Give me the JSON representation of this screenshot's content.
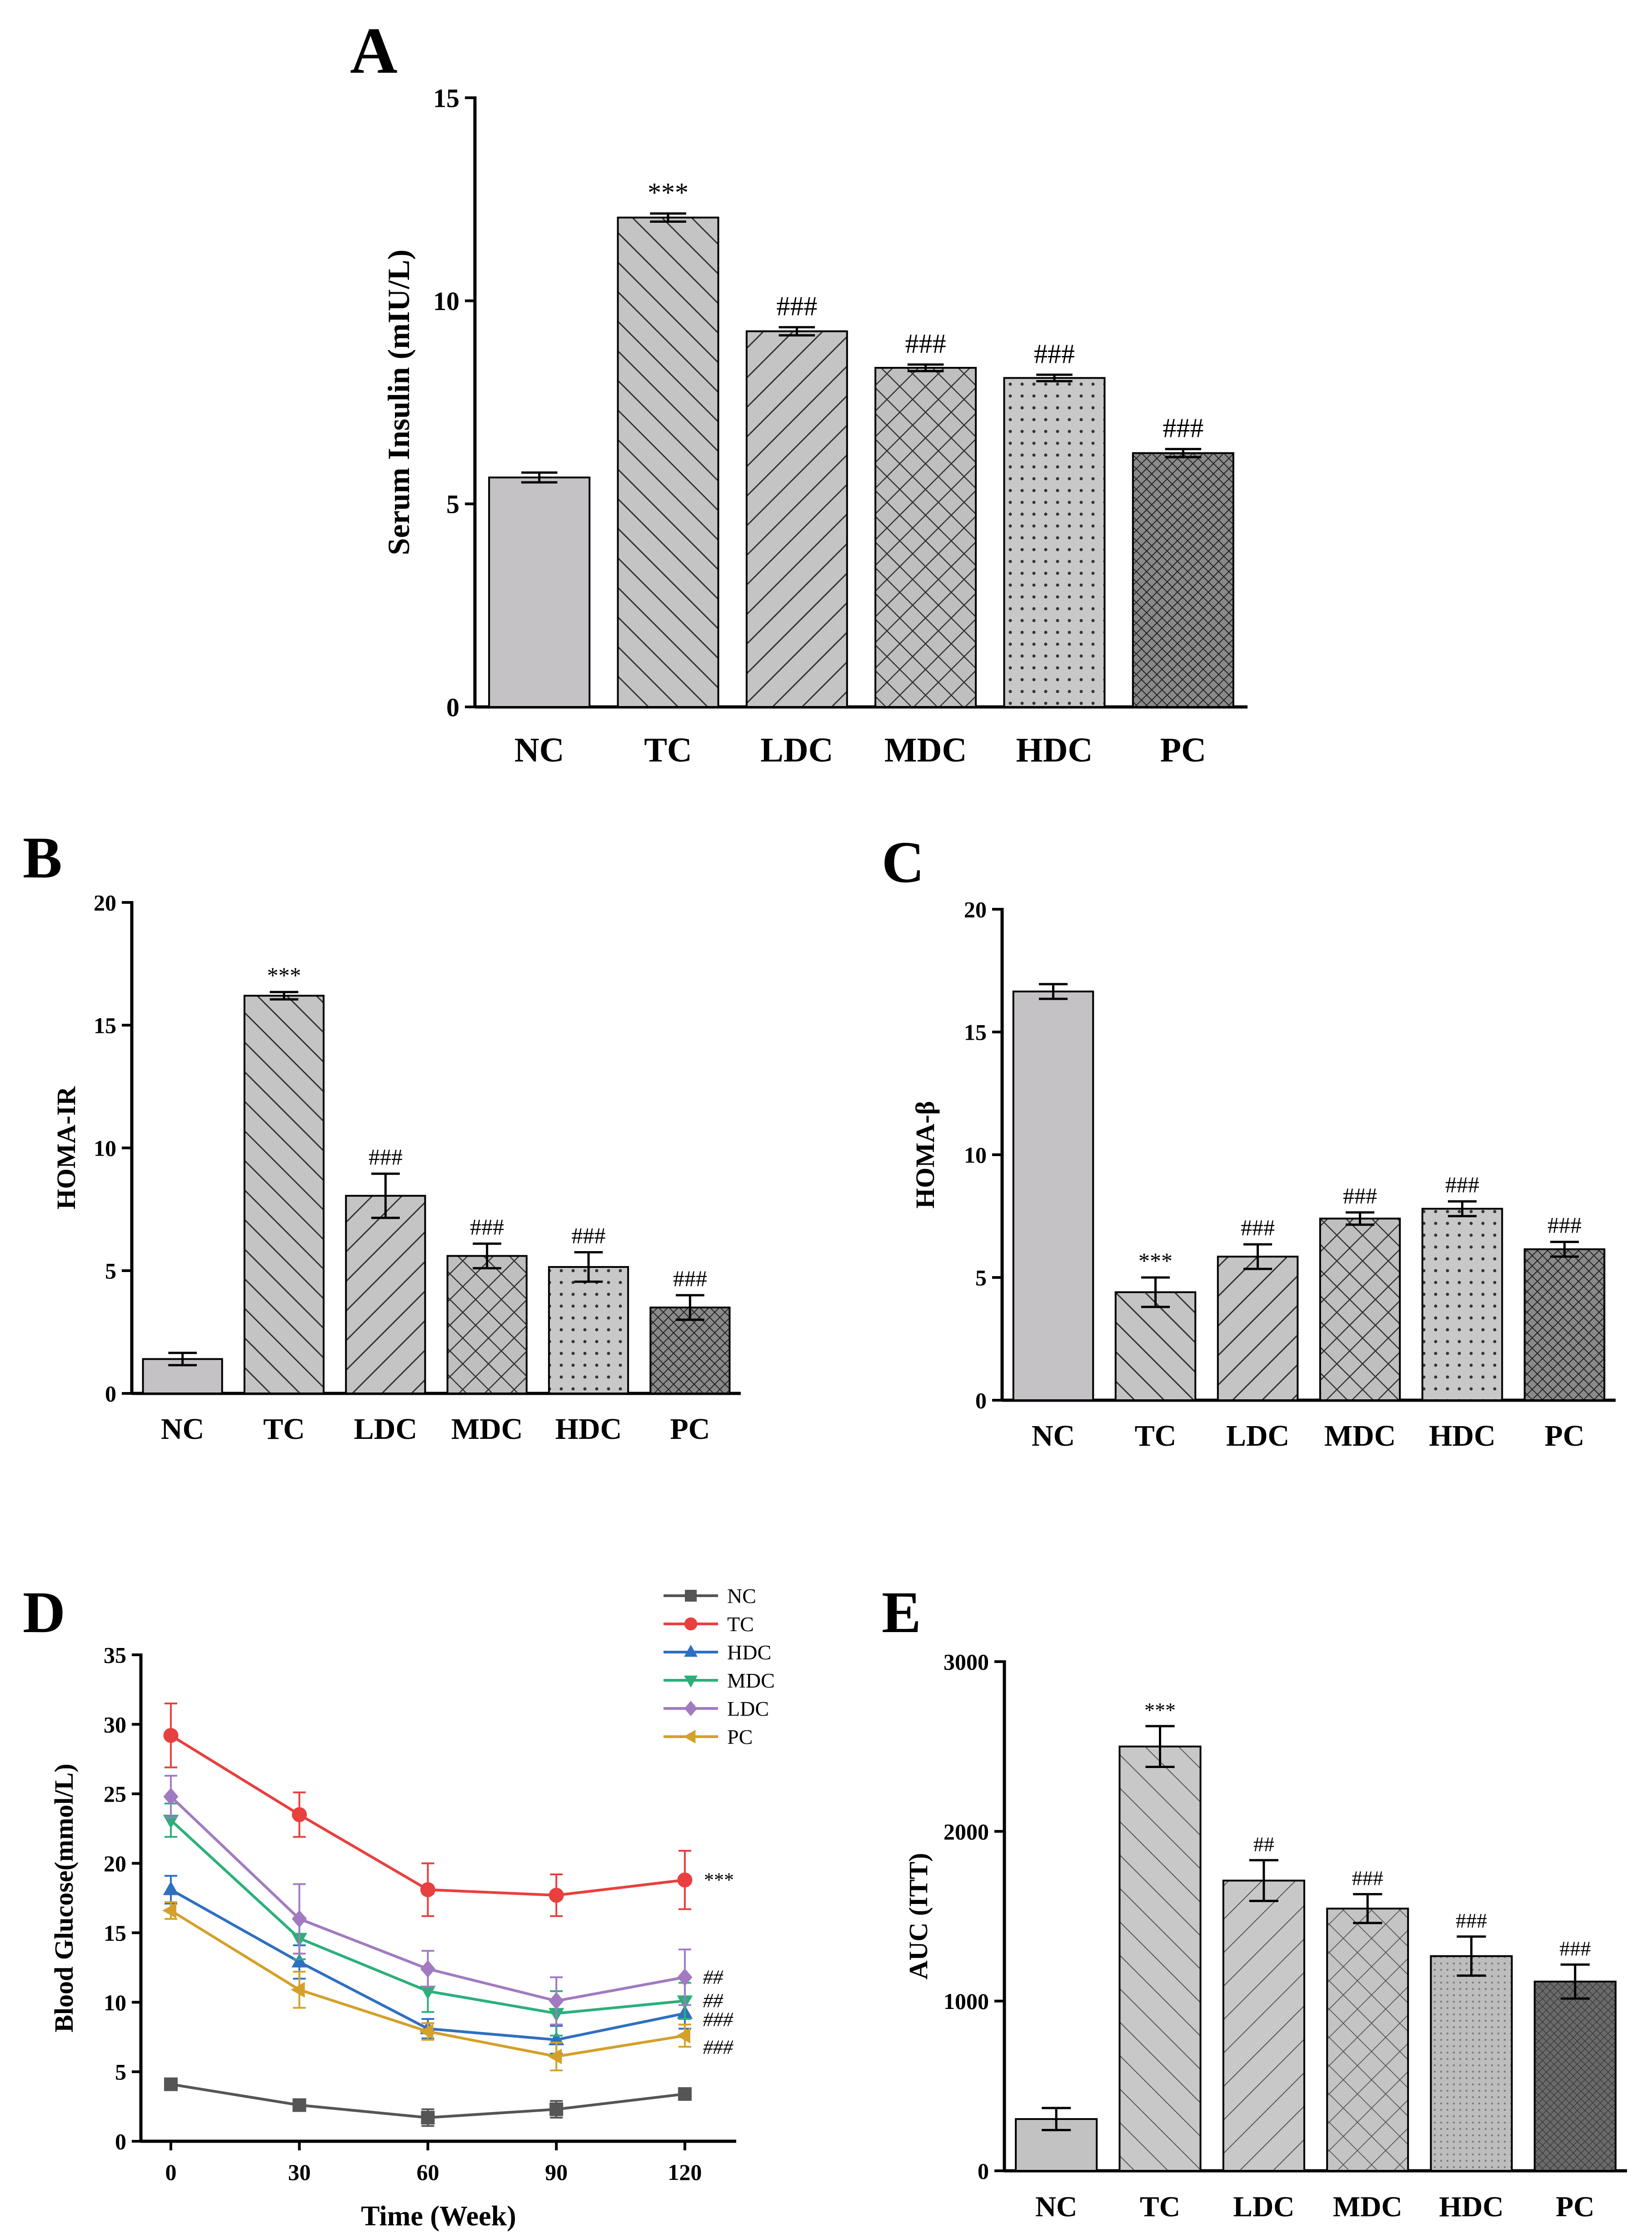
{
  "colors": {
    "NC": "#555555",
    "TC": "#e8403f",
    "HDC": "#2f6fc0",
    "MDC": "#2bb07a",
    "LDC": "#a27ac2",
    "PC": "#d4a02a"
  },
  "chart_data": [
    {
      "panel": "A",
      "type": "bar",
      "ylabel": "Serum Insulin (mIU/L)",
      "categories": [
        "NC",
        "TC",
        "LDC",
        "MDC",
        "HDC",
        "PC"
      ],
      "values": [
        5.65,
        12.05,
        9.25,
        8.35,
        8.1,
        6.25
      ],
      "errors": [
        0.12,
        0.1,
        0.1,
        0.08,
        0.08,
        0.1
      ],
      "significance": [
        "",
        "***",
        "###",
        "###",
        "###",
        "###"
      ],
      "patterns": [
        "solid",
        "diag-right",
        "diag-left",
        "cross",
        "dots",
        "dense"
      ],
      "ylim": [
        0,
        15
      ],
      "yticks": [
        0,
        5,
        10,
        15
      ]
    },
    {
      "panel": "B",
      "type": "bar",
      "ylabel": "HOMA-IR",
      "categories": [
        "NC",
        "TC",
        "LDC",
        "MDC",
        "HDC",
        "PC"
      ],
      "values": [
        1.4,
        16.2,
        8.05,
        5.6,
        5.15,
        3.5
      ],
      "errors": [
        0.25,
        0.15,
        0.9,
        0.5,
        0.6,
        0.5
      ],
      "significance": [
        "",
        "***",
        "###",
        "###",
        "###",
        "###"
      ],
      "patterns": [
        "solid",
        "diag-right",
        "diag-left",
        "cross",
        "dots",
        "dense"
      ],
      "ylim": [
        0,
        20
      ],
      "yticks": [
        0,
        5,
        10,
        15,
        20
      ]
    },
    {
      "panel": "C",
      "type": "bar",
      "ylabel": "HOMA-β",
      "categories": [
        "NC",
        "TC",
        "LDC",
        "MDC",
        "HDC",
        "PC"
      ],
      "values": [
        16.65,
        4.4,
        5.85,
        7.4,
        7.8,
        6.15
      ],
      "errors": [
        0.3,
        0.6,
        0.5,
        0.25,
        0.3,
        0.3
      ],
      "significance": [
        "",
        "***",
        "###",
        "###",
        "###",
        "###"
      ],
      "patterns": [
        "solid",
        "diag-right",
        "diag-left",
        "cross",
        "dots",
        "dense"
      ],
      "ylim": [
        0,
        20
      ],
      "yticks": [
        0,
        5,
        10,
        15,
        20
      ]
    },
    {
      "panel": "D",
      "type": "line",
      "xlabel": "Time (Week)",
      "ylabel": "Blood Glucose(mmol/L)",
      "x": [
        0,
        30,
        60,
        90,
        120
      ],
      "xlim": [
        -7,
        132
      ],
      "ylim": [
        0,
        35
      ],
      "xticks": [
        0,
        30,
        60,
        90,
        120
      ],
      "yticks": [
        0,
        5,
        10,
        15,
        20,
        25,
        30,
        35
      ],
      "legend_position": "top-right",
      "series": [
        {
          "name": "NC",
          "marker": "square",
          "values": [
            4.1,
            2.6,
            1.7,
            2.3,
            3.4
          ],
          "errors": [
            0.3,
            0.4,
            0.6,
            0.6,
            0.3
          ],
          "end_label": ""
        },
        {
          "name": "TC",
          "marker": "circle",
          "values": [
            29.2,
            23.5,
            18.1,
            17.7,
            18.8
          ],
          "errors": [
            2.3,
            1.6,
            1.9,
            1.5,
            2.1
          ],
          "end_label": "***"
        },
        {
          "name": "HDC",
          "marker": "triangle-up",
          "values": [
            18.1,
            12.9,
            8.1,
            7.3,
            9.2
          ],
          "errors": [
            1.0,
            1.2,
            0.7,
            1.0,
            1.1
          ],
          "end_label": "###"
        },
        {
          "name": "MDC",
          "marker": "triangle-down",
          "values": [
            23.1,
            14.6,
            10.8,
            9.2,
            10.1
          ],
          "errors": [
            1.2,
            1.5,
            1.5,
            1.6,
            1.3
          ],
          "end_label": "##"
        },
        {
          "name": "LDC",
          "marker": "diamond",
          "values": [
            24.8,
            16.0,
            12.4,
            10.1,
            11.8
          ],
          "errors": [
            1.5,
            2.5,
            1.3,
            1.7,
            2.0
          ],
          "end_label": "##"
        },
        {
          "name": "PC",
          "marker": "triangle-left",
          "values": [
            16.6,
            10.9,
            7.9,
            6.1,
            7.6
          ],
          "errors": [
            0.6,
            1.3,
            0.6,
            1.0,
            0.8
          ],
          "end_label": "###"
        }
      ]
    },
    {
      "panel": "E",
      "type": "bar",
      "ylabel": "AUC (ITT)",
      "categories": [
        "NC",
        "TC",
        "LDC",
        "MDC",
        "HDC",
        "PC"
      ],
      "values": [
        305,
        2500,
        1710,
        1545,
        1265,
        1115
      ],
      "errors": [
        65,
        120,
        120,
        85,
        115,
        100
      ],
      "significance": [
        "",
        "***",
        "##",
        "###",
        "###",
        "###"
      ],
      "patterns": [
        "solid-light",
        "diag-right-thin",
        "diag-left-thin",
        "cross-thin",
        "dots-fine",
        "dense-dark"
      ],
      "ylim": [
        0,
        3000
      ],
      "yticks": [
        0,
        1000,
        2000,
        3000
      ]
    }
  ]
}
